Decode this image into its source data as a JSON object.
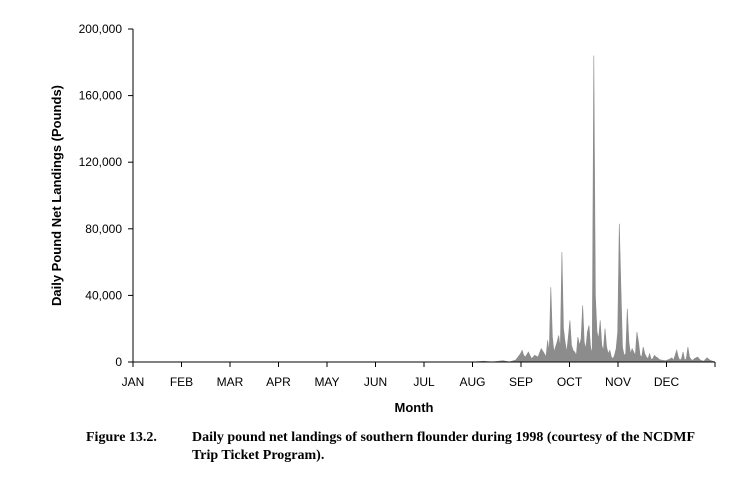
{
  "chart_data": {
    "type": "area",
    "xlabel": "Month",
    "ylabel": "Daily Pound Net Landings (Pounds)",
    "ylim": [
      0,
      200000
    ],
    "yticks": [
      "0",
      "40,000",
      "80,000",
      "120,000",
      "160,000",
      "200,000"
    ],
    "ytick_values": [
      0,
      40000,
      80000,
      120000,
      160000,
      200000
    ],
    "categories": [
      "JAN",
      "FEB",
      "MAR",
      "APR",
      "MAY",
      "JUN",
      "JUL",
      "AUG",
      "SEP",
      "OCT",
      "NOV",
      "DEC"
    ],
    "fill_color": "#8c8c8c",
    "grid": false,
    "series": [
      {
        "x": [
          213,
          220,
          225,
          232,
          236,
          240,
          243,
          244,
          245,
          246,
          248,
          250,
          252,
          254,
          256,
          258,
          259,
          260,
          261,
          262,
          263,
          264,
          265,
          266,
          267,
          268,
          269,
          270,
          271,
          272,
          273,
          274,
          275,
          276,
          277,
          278,
          279,
          280,
          281,
          282,
          283,
          284,
          285,
          286,
          287,
          288,
          289,
          290,
          291,
          292,
          293,
          294,
          295,
          296,
          297,
          298,
          299,
          300,
          301,
          302,
          303,
          304,
          305,
          306,
          307,
          308,
          309,
          310,
          311,
          312,
          313,
          314,
          315,
          316,
          317,
          318,
          319,
          320,
          321,
          322,
          323,
          324,
          325,
          326,
          327,
          328,
          329,
          330,
          332,
          334,
          336,
          337,
          338,
          339,
          340,
          341,
          342,
          343,
          344,
          345,
          346,
          347,
          348,
          349,
          350,
          351,
          352,
          354,
          356,
          358,
          360,
          362,
          365
        ],
        "y": [
          0,
          500,
          0,
          800,
          0,
          1200,
          5000,
          7000,
          4000,
          3000,
          6000,
          2000,
          4000,
          3000,
          8000,
          5000,
          3000,
          13000,
          6000,
          45000,
          15000,
          6000,
          9000,
          12000,
          16000,
          8000,
          66000,
          20000,
          12000,
          6000,
          15000,
          25000,
          10000,
          7000,
          6000,
          4000,
          15000,
          10000,
          14000,
          34000,
          12000,
          8000,
          18000,
          22000,
          9000,
          5000,
          184000,
          40000,
          18000,
          14000,
          25000,
          10000,
          7000,
          20000,
          9000,
          5000,
          7000,
          3000,
          2000,
          4000,
          8000,
          18000,
          83000,
          45000,
          9000,
          4000,
          5000,
          32000,
          12000,
          5000,
          8000,
          6000,
          4000,
          18000,
          12000,
          4000,
          3000,
          9000,
          5000,
          3000,
          2000,
          5000,
          1500,
          2000,
          4000,
          3000,
          2500,
          1500,
          1000,
          800,
          1500,
          2000,
          2500,
          1000,
          4000,
          7000,
          3000,
          1000,
          2000,
          6000,
          1000,
          2000,
          9000,
          3000,
          1500,
          1000,
          2000,
          3000,
          1000,
          500,
          2500,
          1000,
          0
        ]
      }
    ]
  },
  "caption": {
    "label": "Figure 13.2.",
    "text": "Daily pound net landings of southern flounder during 1998 (courtesy of the NCDMF Trip Ticket Program)."
  }
}
